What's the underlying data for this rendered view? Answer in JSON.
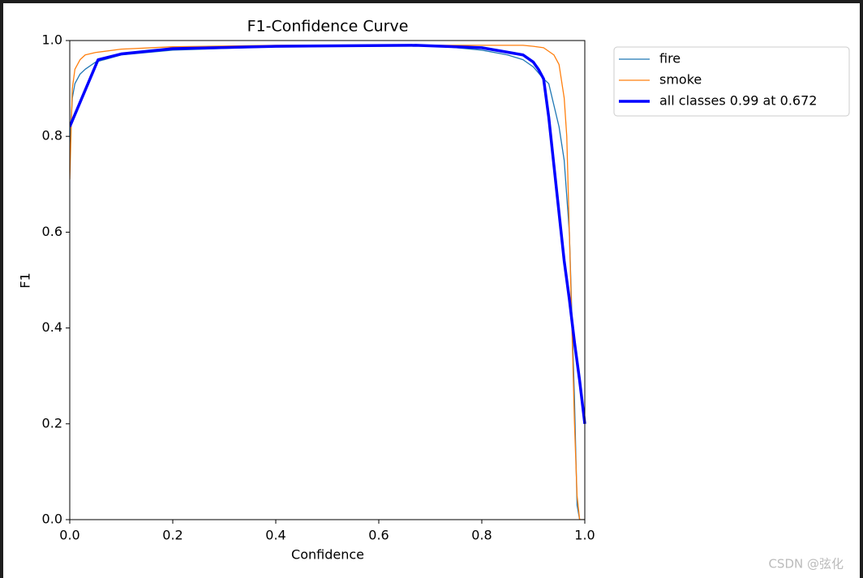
{
  "chart_data": {
    "type": "line",
    "title": "F1-Confidence Curve",
    "x_label": "Confidence",
    "y_label": "F1",
    "xlim": [
      0,
      1
    ],
    "ylim": [
      0,
      1
    ],
    "xticks": [
      {
        "value": 0,
        "label": "0.0"
      },
      0.2,
      0.4,
      0.6,
      0.8,
      {
        "value": 1,
        "label": "1.0"
      }
    ],
    "yticks": [
      {
        "value": 0,
        "label": "0.0"
      },
      0.2,
      0.4,
      0.6,
      0.8,
      {
        "value": 1,
        "label": "1.0"
      }
    ],
    "grid": false,
    "legend": "outside-upper-right",
    "series": [
      {
        "name": "fire",
        "color": "#1f77b4",
        "width": 1.3,
        "x": [
          0,
          0.005,
          0.01,
          0.02,
          0.03,
          0.05,
          0.1,
          0.2,
          0.4,
          0.6,
          0.7,
          0.8,
          0.85,
          0.88,
          0.9,
          0.92,
          0.93,
          0.95,
          0.96,
          0.97,
          0.98,
          0.985,
          0.99,
          1.0
        ],
        "values": [
          0.78,
          0.88,
          0.91,
          0.93,
          0.94,
          0.955,
          0.97,
          0.98,
          0.987,
          0.99,
          0.99,
          0.98,
          0.97,
          0.96,
          0.945,
          0.92,
          0.91,
          0.82,
          0.75,
          0.6,
          0.25,
          0.03,
          0,
          0
        ]
      },
      {
        "name": "smoke",
        "color": "#ff7f0e",
        "width": 1.3,
        "x": [
          0,
          0.005,
          0.01,
          0.02,
          0.03,
          0.05,
          0.1,
          0.2,
          0.4,
          0.6,
          0.8,
          0.88,
          0.9,
          0.92,
          0.94,
          0.95,
          0.96,
          0.965,
          0.97,
          0.975,
          0.98,
          0.985,
          0.99,
          1.0
        ],
        "values": [
          0.71,
          0.9,
          0.94,
          0.96,
          0.97,
          0.975,
          0.982,
          0.987,
          0.99,
          0.99,
          0.99,
          0.99,
          0.988,
          0.985,
          0.97,
          0.95,
          0.88,
          0.8,
          0.6,
          0.4,
          0.2,
          0.05,
          0,
          0
        ]
      },
      {
        "name": "all classes 0.99 at 0.672",
        "color": "#0000ff",
        "width": 3.5,
        "x": [
          0,
          0.055,
          0.1,
          0.2,
          0.4,
          0.672,
          0.8,
          0.88,
          0.9,
          0.91,
          0.92,
          0.93,
          0.94,
          0.95,
          0.96,
          0.97,
          0.98,
          0.99,
          1.0
        ],
        "values": [
          0.82,
          0.96,
          0.972,
          0.983,
          0.988,
          0.99,
          0.985,
          0.97,
          0.955,
          0.94,
          0.92,
          0.84,
          0.74,
          0.64,
          0.54,
          0.46,
          0.37,
          0.29,
          0.2
        ]
      }
    ]
  },
  "watermark": "CSDN @弦化"
}
